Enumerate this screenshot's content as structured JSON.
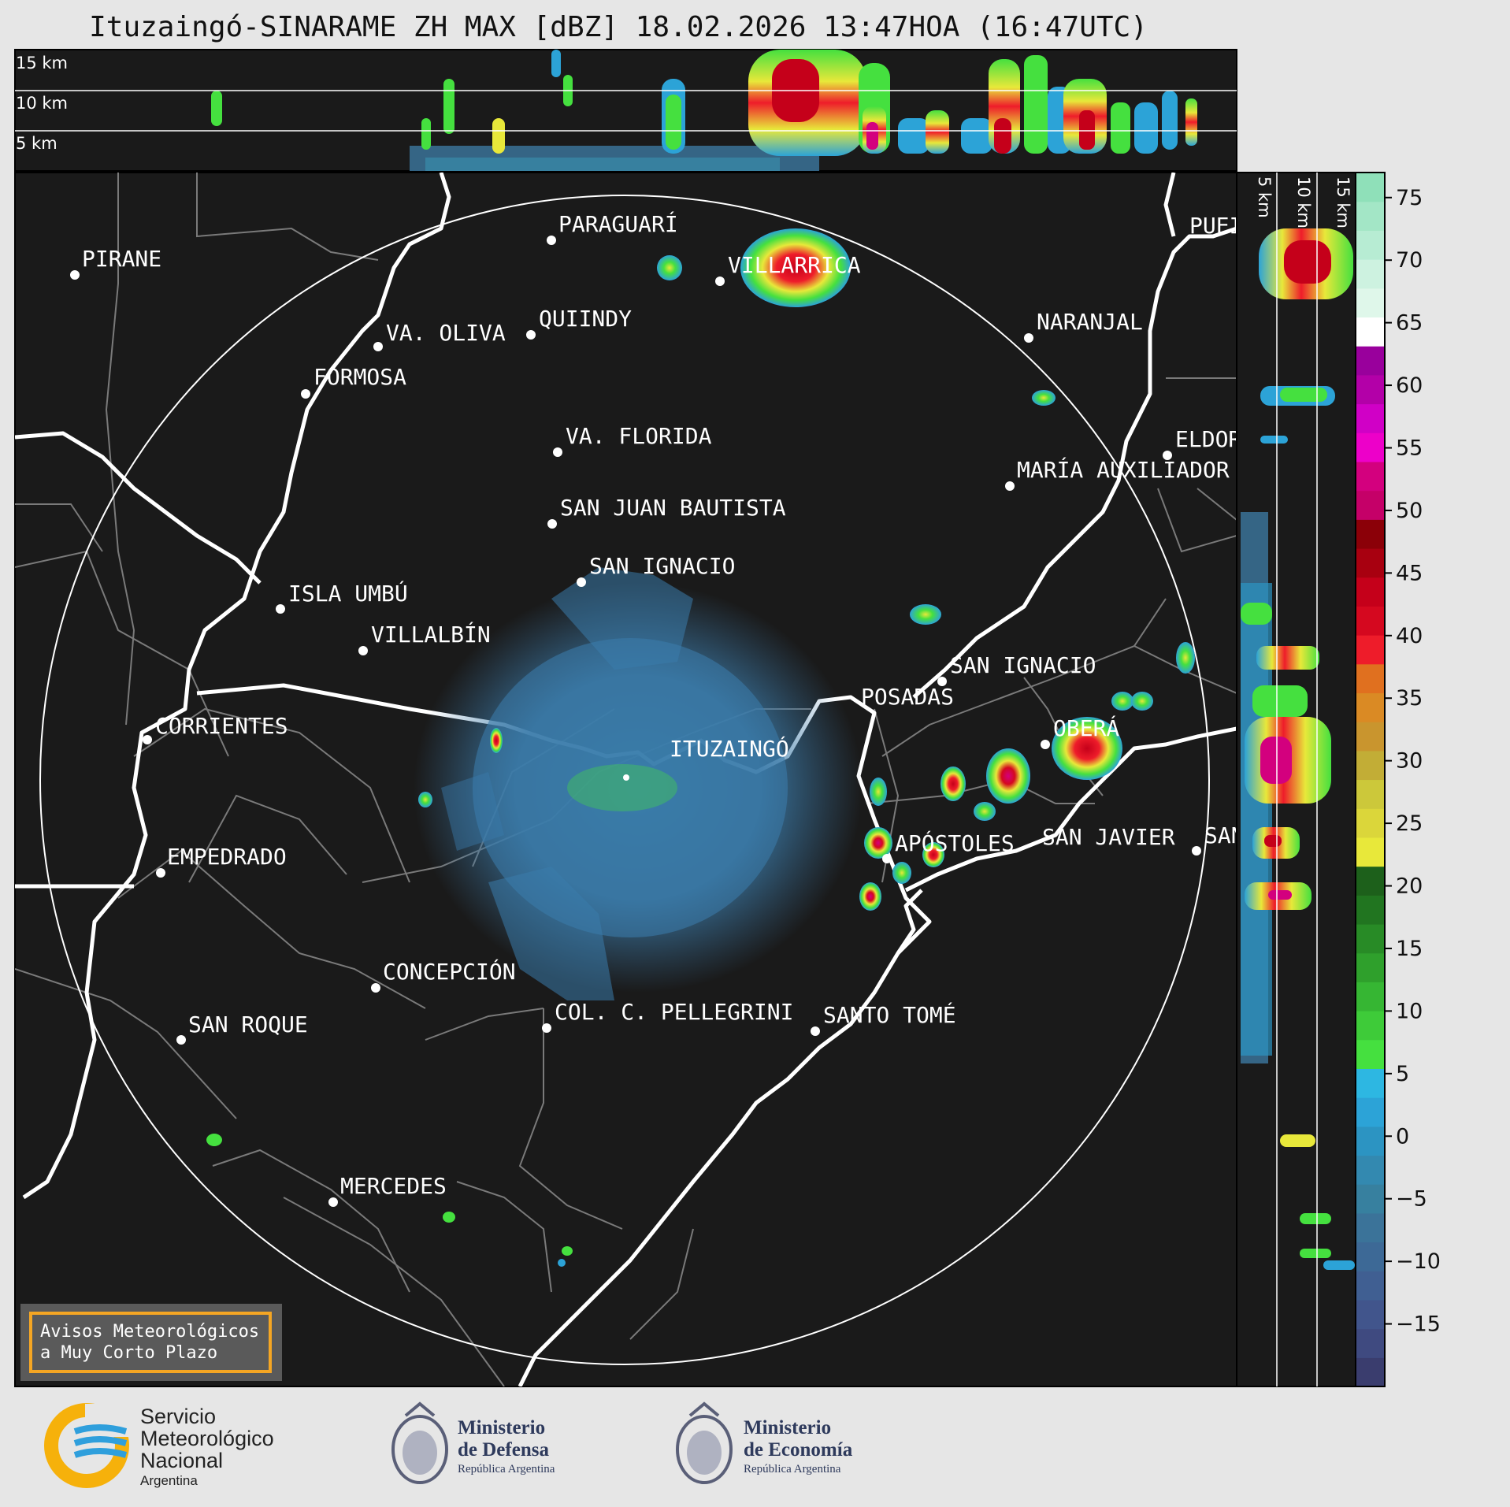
{
  "title": "Ituzaingó-SINARAME ZH MAX [dBZ] 18.02.2026 13:47HOA (16:47UTC)",
  "radar_center": "ITUZAINGÓ",
  "cross_section_top": {
    "height_labels": [
      "15 km",
      "10 km",
      "5 km"
    ]
  },
  "cross_section_right": {
    "height_labels": [
      "5 km",
      "10 km",
      "15 km"
    ]
  },
  "cities": [
    {
      "name": "PIRANE"
    },
    {
      "name": "PARAGUARÍ"
    },
    {
      "name": "VILLARRICA"
    },
    {
      "name": "QUIINDY"
    },
    {
      "name": "VA. OLIVA"
    },
    {
      "name": "FORMOSA"
    },
    {
      "name": "NARANJAL"
    },
    {
      "name": "VA. FLORIDA"
    },
    {
      "name": "ELDOR"
    },
    {
      "name": "MARÍA AUXILIADOR"
    },
    {
      "name": "SAN JUAN BAUTISTA"
    },
    {
      "name": "SAN IGNACIO"
    },
    {
      "name": "ISLA UMBÚ"
    },
    {
      "name": "VILLALBÍN"
    },
    {
      "name": "SAN IGNACIO"
    },
    {
      "name": "POSADAS"
    },
    {
      "name": "CORRIENTES"
    },
    {
      "name": "ITUZAINGÓ"
    },
    {
      "name": "OBERÁ"
    },
    {
      "name": "APÓSTOLES"
    },
    {
      "name": "SAN JAVIER"
    },
    {
      "name": "SAN"
    },
    {
      "name": "EMPEDRADO"
    },
    {
      "name": "CONCEPCIÓN"
    },
    {
      "name": "COL. C. PELLEGRINI"
    },
    {
      "name": "SANTO TOMÉ"
    },
    {
      "name": "SAN ROQUE"
    },
    {
      "name": "MERCEDES"
    },
    {
      "name": "PUEI"
    }
  ],
  "colorbar": {
    "ticks": [
      "75",
      "70",
      "65",
      "60",
      "55",
      "50",
      "45",
      "40",
      "35",
      "30",
      "25",
      "20",
      "15",
      "10",
      "5",
      "0",
      "−5",
      "−10",
      "−15"
    ],
    "range": [
      -20,
      77
    ],
    "colors": [
      "#3a3d6e",
      "#3f4a80",
      "#41558c",
      "#405f92",
      "#3d6996",
      "#3b7399",
      "#37809f",
      "#3389b0",
      "#2c94c2",
      "#2ca3d7",
      "#2db7e2",
      "#45e03f",
      "#3ecb39",
      "#36b633",
      "#2fa02c",
      "#288b26",
      "#217520",
      "#1d601b",
      "#e8e83a",
      "#dbd63a",
      "#ccc83a",
      "#c2ad36",
      "#c9952e",
      "#da8a24",
      "#e0701f",
      "#ee1c2a",
      "#d5081f",
      "#c5001a",
      "#a80010",
      "#8b0008",
      "#c50068",
      "#d3007e",
      "#ed00c9",
      "#d000c6",
      "#b300a8",
      "#99009c",
      "#ffffff",
      "#dff7ea",
      "#cdf2e0",
      "#b7ecd3",
      "#a3e6c6",
      "#8fe0b9"
    ]
  },
  "warning_box": {
    "line1": "Avisos Meteorológicos",
    "line2": "a Muy Corto Plazo"
  },
  "logos": {
    "smn": {
      "line1": "Servicio",
      "line2": "Meteorológico",
      "line3": "Nacional",
      "line4": "Argentina"
    },
    "defensa": {
      "line1": "Ministerio",
      "line2": "de Defensa",
      "line3": "República Argentina"
    },
    "economia": {
      "line1": "Ministerio",
      "line2": "de Economía",
      "line3": "República Argentina"
    }
  },
  "colors": {
    "map_bg": "#1a1a1a",
    "page_bg": "#e6e6e6",
    "rivers": "#ffffff",
    "boundaries": "#7a7a7a",
    "warning_border": "#f5a623",
    "smn_yellow": "#f6b10b",
    "smn_blue": "#2f9fdc"
  }
}
